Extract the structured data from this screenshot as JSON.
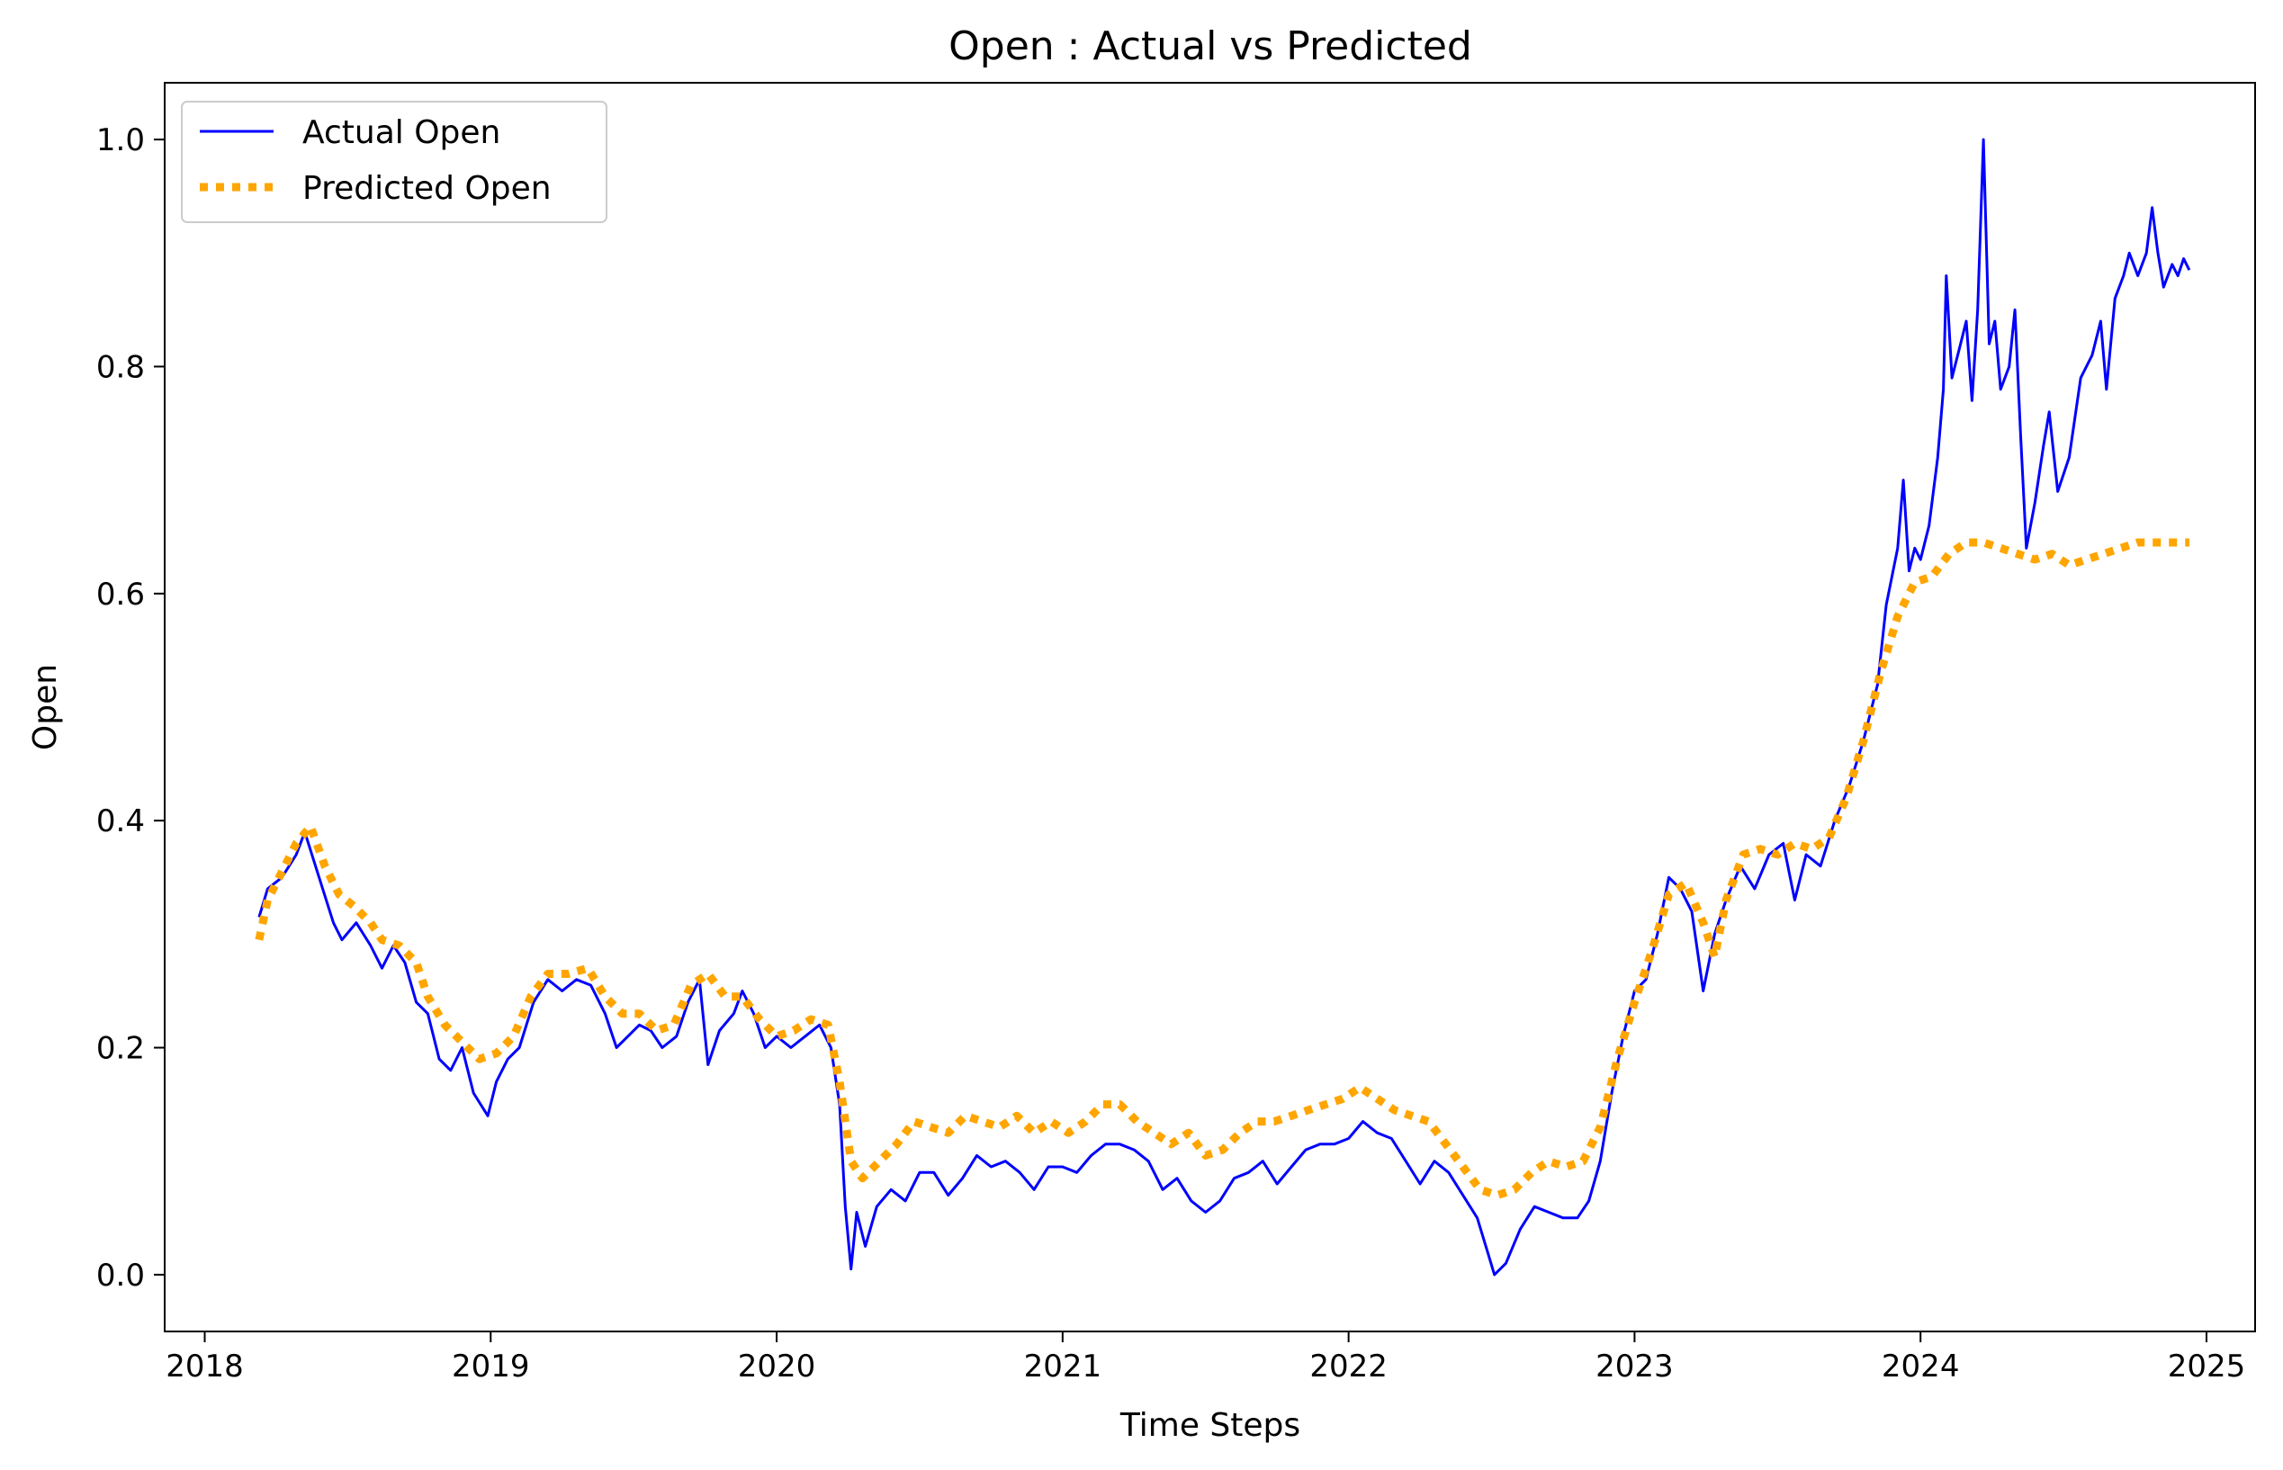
{
  "chart_data": {
    "type": "line",
    "title": "Open : Actual vs Predicted",
    "xlabel": "Time Steps",
    "ylabel": "Open",
    "x_ticks": [
      "2018",
      "2019",
      "2020",
      "2021",
      "2022",
      "2023",
      "2024",
      "2025"
    ],
    "y_ticks": [
      "0.0",
      "0.2",
      "0.4",
      "0.6",
      "0.8",
      "1.0"
    ],
    "xlim": [
      2017.86,
      2025.17
    ],
    "ylim": [
      -0.05,
      1.05
    ],
    "grid": false,
    "legend_position": "top-left",
    "series": [
      {
        "name": "Actual Open",
        "color": "#0000ff",
        "style": "solid",
        "points": [
          [
            2018.19,
            0.315
          ],
          [
            2018.22,
            0.34
          ],
          [
            2018.27,
            0.35
          ],
          [
            2018.32,
            0.37
          ],
          [
            2018.35,
            0.39
          ],
          [
            2018.4,
            0.35
          ],
          [
            2018.45,
            0.31
          ],
          [
            2018.48,
            0.295
          ],
          [
            2018.53,
            0.31
          ],
          [
            2018.58,
            0.29
          ],
          [
            2018.62,
            0.27
          ],
          [
            2018.66,
            0.29
          ],
          [
            2018.7,
            0.275
          ],
          [
            2018.74,
            0.24
          ],
          [
            2018.78,
            0.23
          ],
          [
            2018.82,
            0.19
          ],
          [
            2018.86,
            0.18
          ],
          [
            2018.9,
            0.2
          ],
          [
            2018.94,
            0.16
          ],
          [
            2018.99,
            0.14
          ],
          [
            2019.02,
            0.17
          ],
          [
            2019.06,
            0.19
          ],
          [
            2019.1,
            0.2
          ],
          [
            2019.15,
            0.24
          ],
          [
            2019.2,
            0.26
          ],
          [
            2019.25,
            0.25
          ],
          [
            2019.3,
            0.26
          ],
          [
            2019.35,
            0.255
          ],
          [
            2019.4,
            0.23
          ],
          [
            2019.44,
            0.2
          ],
          [
            2019.48,
            0.21
          ],
          [
            2019.52,
            0.22
          ],
          [
            2019.56,
            0.215
          ],
          [
            2019.6,
            0.2
          ],
          [
            2019.65,
            0.21
          ],
          [
            2019.69,
            0.24
          ],
          [
            2019.73,
            0.26
          ],
          [
            2019.76,
            0.185
          ],
          [
            2019.8,
            0.215
          ],
          [
            2019.85,
            0.23
          ],
          [
            2019.88,
            0.25
          ],
          [
            2019.92,
            0.23
          ],
          [
            2019.96,
            0.2
          ],
          [
            2020.0,
            0.21
          ],
          [
            2020.05,
            0.2
          ],
          [
            2020.1,
            0.21
          ],
          [
            2020.15,
            0.22
          ],
          [
            2020.19,
            0.2
          ],
          [
            2020.22,
            0.15
          ],
          [
            2020.24,
            0.06
          ],
          [
            2020.26,
            0.005
          ],
          [
            2020.28,
            0.055
          ],
          [
            2020.31,
            0.025
          ],
          [
            2020.35,
            0.06
          ],
          [
            2020.4,
            0.075
          ],
          [
            2020.45,
            0.065
          ],
          [
            2020.5,
            0.09
          ],
          [
            2020.55,
            0.09
          ],
          [
            2020.6,
            0.07
          ],
          [
            2020.65,
            0.085
          ],
          [
            2020.7,
            0.105
          ],
          [
            2020.75,
            0.095
          ],
          [
            2020.8,
            0.1
          ],
          [
            2020.85,
            0.09
          ],
          [
            2020.9,
            0.075
          ],
          [
            2020.95,
            0.095
          ],
          [
            2021.0,
            0.095
          ],
          [
            2021.05,
            0.09
          ],
          [
            2021.1,
            0.105
          ],
          [
            2021.15,
            0.115
          ],
          [
            2021.2,
            0.115
          ],
          [
            2021.25,
            0.11
          ],
          [
            2021.3,
            0.1
          ],
          [
            2021.35,
            0.075
          ],
          [
            2021.4,
            0.085
          ],
          [
            2021.45,
            0.065
          ],
          [
            2021.5,
            0.055
          ],
          [
            2021.55,
            0.065
          ],
          [
            2021.6,
            0.085
          ],
          [
            2021.65,
            0.09
          ],
          [
            2021.7,
            0.1
          ],
          [
            2021.75,
            0.08
          ],
          [
            2021.8,
            0.095
          ],
          [
            2021.85,
            0.11
          ],
          [
            2021.9,
            0.115
          ],
          [
            2021.95,
            0.115
          ],
          [
            2022.0,
            0.12
          ],
          [
            2022.05,
            0.135
          ],
          [
            2022.1,
            0.125
          ],
          [
            2022.15,
            0.12
          ],
          [
            2022.2,
            0.1
          ],
          [
            2022.25,
            0.08
          ],
          [
            2022.3,
            0.1
          ],
          [
            2022.35,
            0.09
          ],
          [
            2022.4,
            0.07
          ],
          [
            2022.45,
            0.05
          ],
          [
            2022.48,
            0.025
          ],
          [
            2022.51,
            0.0
          ],
          [
            2022.55,
            0.01
          ],
          [
            2022.6,
            0.04
          ],
          [
            2022.65,
            0.06
          ],
          [
            2022.7,
            0.055
          ],
          [
            2022.75,
            0.05
          ],
          [
            2022.8,
            0.05
          ],
          [
            2022.84,
            0.065
          ],
          [
            2022.88,
            0.1
          ],
          [
            2022.92,
            0.16
          ],
          [
            2022.96,
            0.21
          ],
          [
            2023.0,
            0.25
          ],
          [
            2023.04,
            0.26
          ],
          [
            2023.08,
            0.3
          ],
          [
            2023.12,
            0.35
          ],
          [
            2023.16,
            0.34
          ],
          [
            2023.2,
            0.32
          ],
          [
            2023.24,
            0.25
          ],
          [
            2023.28,
            0.3
          ],
          [
            2023.32,
            0.33
          ],
          [
            2023.37,
            0.36
          ],
          [
            2023.42,
            0.34
          ],
          [
            2023.47,
            0.37
          ],
          [
            2023.52,
            0.38
          ],
          [
            2023.56,
            0.33
          ],
          [
            2023.6,
            0.37
          ],
          [
            2023.65,
            0.36
          ],
          [
            2023.7,
            0.4
          ],
          [
            2023.75,
            0.43
          ],
          [
            2023.8,
            0.47
          ],
          [
            2023.85,
            0.52
          ],
          [
            2023.88,
            0.59
          ],
          [
            2023.92,
            0.64
          ],
          [
            2023.94,
            0.7
          ],
          [
            2023.96,
            0.62
          ],
          [
            2023.98,
            0.64
          ],
          [
            2024.0,
            0.63
          ],
          [
            2024.03,
            0.66
          ],
          [
            2024.06,
            0.72
          ],
          [
            2024.08,
            0.78
          ],
          [
            2024.09,
            0.88
          ],
          [
            2024.11,
            0.79
          ],
          [
            2024.14,
            0.82
          ],
          [
            2024.16,
            0.84
          ],
          [
            2024.18,
            0.77
          ],
          [
            2024.2,
            0.85
          ],
          [
            2024.22,
            1.0
          ],
          [
            2024.24,
            0.82
          ],
          [
            2024.26,
            0.84
          ],
          [
            2024.28,
            0.78
          ],
          [
            2024.31,
            0.8
          ],
          [
            2024.33,
            0.85
          ],
          [
            2024.35,
            0.74
          ],
          [
            2024.37,
            0.64
          ],
          [
            2024.4,
            0.68
          ],
          [
            2024.43,
            0.73
          ],
          [
            2024.45,
            0.76
          ],
          [
            2024.48,
            0.69
          ],
          [
            2024.52,
            0.72
          ],
          [
            2024.56,
            0.79
          ],
          [
            2024.6,
            0.81
          ],
          [
            2024.63,
            0.84
          ],
          [
            2024.65,
            0.78
          ],
          [
            2024.68,
            0.86
          ],
          [
            2024.71,
            0.88
          ],
          [
            2024.73,
            0.9
          ],
          [
            2024.76,
            0.88
          ],
          [
            2024.79,
            0.9
          ],
          [
            2024.81,
            0.94
          ],
          [
            2024.83,
            0.9
          ],
          [
            2024.85,
            0.87
          ],
          [
            2024.88,
            0.89
          ],
          [
            2024.9,
            0.88
          ],
          [
            2024.92,
            0.895
          ],
          [
            2024.94,
            0.885
          ]
        ]
      },
      {
        "name": "Predicted Open",
        "color": "#ffa500",
        "style": "dotted",
        "points": [
          [
            2018.19,
            0.295
          ],
          [
            2018.22,
            0.33
          ],
          [
            2018.27,
            0.355
          ],
          [
            2018.32,
            0.38
          ],
          [
            2018.37,
            0.395
          ],
          [
            2018.42,
            0.36
          ],
          [
            2018.47,
            0.335
          ],
          [
            2018.52,
            0.325
          ],
          [
            2018.58,
            0.31
          ],
          [
            2018.62,
            0.295
          ],
          [
            2018.68,
            0.29
          ],
          [
            2018.74,
            0.275
          ],
          [
            2018.78,
            0.245
          ],
          [
            2018.84,
            0.22
          ],
          [
            2018.9,
            0.205
          ],
          [
            2018.96,
            0.19
          ],
          [
            2019.02,
            0.195
          ],
          [
            2019.08,
            0.21
          ],
          [
            2019.14,
            0.245
          ],
          [
            2019.2,
            0.265
          ],
          [
            2019.27,
            0.265
          ],
          [
            2019.34,
            0.27
          ],
          [
            2019.4,
            0.245
          ],
          [
            2019.46,
            0.23
          ],
          [
            2019.52,
            0.23
          ],
          [
            2019.58,
            0.215
          ],
          [
            2019.64,
            0.22
          ],
          [
            2019.7,
            0.255
          ],
          [
            2019.76,
            0.265
          ],
          [
            2019.82,
            0.245
          ],
          [
            2019.88,
            0.245
          ],
          [
            2019.94,
            0.225
          ],
          [
            2020.0,
            0.21
          ],
          [
            2020.06,
            0.215
          ],
          [
            2020.12,
            0.225
          ],
          [
            2020.18,
            0.22
          ],
          [
            2020.22,
            0.17
          ],
          [
            2020.26,
            0.1
          ],
          [
            2020.3,
            0.085
          ],
          [
            2020.36,
            0.1
          ],
          [
            2020.42,
            0.115
          ],
          [
            2020.48,
            0.135
          ],
          [
            2020.54,
            0.13
          ],
          [
            2020.6,
            0.125
          ],
          [
            2020.66,
            0.14
          ],
          [
            2020.72,
            0.135
          ],
          [
            2020.78,
            0.13
          ],
          [
            2020.84,
            0.14
          ],
          [
            2020.9,
            0.125
          ],
          [
            2020.96,
            0.135
          ],
          [
            2021.02,
            0.125
          ],
          [
            2021.08,
            0.135
          ],
          [
            2021.14,
            0.15
          ],
          [
            2021.2,
            0.15
          ],
          [
            2021.26,
            0.135
          ],
          [
            2021.32,
            0.125
          ],
          [
            2021.38,
            0.115
          ],
          [
            2021.44,
            0.125
          ],
          [
            2021.5,
            0.105
          ],
          [
            2021.56,
            0.11
          ],
          [
            2021.62,
            0.125
          ],
          [
            2021.68,
            0.135
          ],
          [
            2021.74,
            0.135
          ],
          [
            2021.8,
            0.14
          ],
          [
            2021.86,
            0.145
          ],
          [
            2021.92,
            0.15
          ],
          [
            2021.98,
            0.155
          ],
          [
            2022.04,
            0.165
          ],
          [
            2022.1,
            0.155
          ],
          [
            2022.16,
            0.145
          ],
          [
            2022.22,
            0.14
          ],
          [
            2022.28,
            0.135
          ],
          [
            2022.34,
            0.115
          ],
          [
            2022.4,
            0.095
          ],
          [
            2022.46,
            0.075
          ],
          [
            2022.52,
            0.07
          ],
          [
            2022.58,
            0.075
          ],
          [
            2022.64,
            0.09
          ],
          [
            2022.7,
            0.1
          ],
          [
            2022.76,
            0.095
          ],
          [
            2022.82,
            0.1
          ],
          [
            2022.88,
            0.13
          ],
          [
            2022.94,
            0.19
          ],
          [
            2023.0,
            0.24
          ],
          [
            2023.06,
            0.285
          ],
          [
            2023.12,
            0.335
          ],
          [
            2023.18,
            0.345
          ],
          [
            2023.24,
            0.31
          ],
          [
            2023.28,
            0.28
          ],
          [
            2023.32,
            0.33
          ],
          [
            2023.38,
            0.37
          ],
          [
            2023.44,
            0.375
          ],
          [
            2023.5,
            0.37
          ],
          [
            2023.56,
            0.38
          ],
          [
            2023.62,
            0.375
          ],
          [
            2023.68,
            0.385
          ],
          [
            2023.74,
            0.42
          ],
          [
            2023.8,
            0.47
          ],
          [
            2023.86,
            0.53
          ],
          [
            2023.92,
            0.58
          ],
          [
            2023.98,
            0.61
          ],
          [
            2024.04,
            0.615
          ],
          [
            2024.1,
            0.635
          ],
          [
            2024.16,
            0.645
          ],
          [
            2024.22,
            0.645
          ],
          [
            2024.28,
            0.64
          ],
          [
            2024.34,
            0.635
          ],
          [
            2024.4,
            0.63
          ],
          [
            2024.46,
            0.635
          ],
          [
            2024.52,
            0.625
          ],
          [
            2024.58,
            0.63
          ],
          [
            2024.64,
            0.635
          ],
          [
            2024.7,
            0.64
          ],
          [
            2024.76,
            0.645
          ],
          [
            2024.82,
            0.645
          ],
          [
            2024.88,
            0.645
          ],
          [
            2024.94,
            0.645
          ]
        ]
      }
    ]
  }
}
